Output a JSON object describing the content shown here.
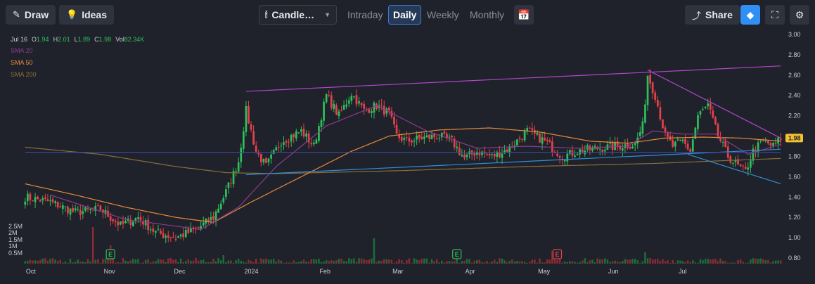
{
  "toolbar": {
    "draw_label": "Draw",
    "ideas_label": "Ideas",
    "chart_type_label": "Candle…",
    "tabs": [
      "Intraday",
      "Daily",
      "Weekly",
      "Monthly"
    ],
    "active_tab": "Daily",
    "share_label": "Share"
  },
  "icons": {
    "draw": "pencil-icon",
    "ideas": "lightbulb-icon",
    "chart_type": "candlestick-icon",
    "calendar": "calendar-icon",
    "share": "share-icon",
    "premium": "diamond-icon",
    "fullscreen": "fullscreen-icon",
    "settings": "gear-icon"
  },
  "ohlc": {
    "date": "Jul 16",
    "o_label": "O",
    "o": "1.94",
    "h_label": "H",
    "h": "2.01",
    "l_label": "L",
    "l": "1.89",
    "c_label": "C",
    "c": "1.98",
    "vol_label": "Vol",
    "vol": "82.34K"
  },
  "indicators": [
    {
      "label": "SMA 20",
      "color": "#8e3b8e"
    },
    {
      "label": "SMA 50",
      "color": "#e8893a"
    },
    {
      "label": "SMA 200",
      "color": "#8a6e3a"
    }
  ],
  "colors": {
    "up": "#2fbf5a",
    "down": "#e8404a",
    "trendline_upper": "#b046c8",
    "trendline_lower": "#2e8fd6",
    "horizontal_line": "#3a4aa8",
    "last_price_bg": "#f2c230"
  },
  "chart_data": {
    "type": "candlestick",
    "last_price": "1.98",
    "y_ticks": [
      "3.00",
      "2.80",
      "2.60",
      "2.40",
      "2.20",
      "2.00",
      "1.80",
      "1.60",
      "1.40",
      "1.20",
      "1.00",
      "0.80"
    ],
    "ylim": [
      0.8,
      3.0
    ],
    "volume_ticks": [
      "2.5M",
      "2M",
      "1.5M",
      "1M",
      "0.5M"
    ],
    "x_ticks": [
      "Oct",
      "Nov",
      "Dec",
      "2024",
      "Feb",
      "Mar",
      "Apr",
      "May",
      "Jun",
      "Jul"
    ],
    "close_anchors": [
      [
        0,
        1.4
      ],
      [
        10,
        1.35
      ],
      [
        20,
        1.25
      ],
      [
        30,
        1.28
      ],
      [
        38,
        1.12
      ],
      [
        45,
        1.2
      ],
      [
        52,
        1.05
      ],
      [
        60,
        1.0
      ],
      [
        68,
        1.08
      ],
      [
        75,
        1.2
      ],
      [
        80,
        1.45
      ],
      [
        85,
        1.75
      ],
      [
        88,
        2.25
      ],
      [
        92,
        1.85
      ],
      [
        96,
        1.7
      ],
      [
        102,
        1.95
      ],
      [
        110,
        2.05
      ],
      [
        115,
        1.9
      ],
      [
        120,
        2.4
      ],
      [
        125,
        2.2
      ],
      [
        130,
        2.42
      ],
      [
        135,
        2.25
      ],
      [
        140,
        2.3
      ],
      [
        145,
        2.22
      ],
      [
        148,
        2.0
      ],
      [
        152,
        1.95
      ],
      [
        158,
        1.98
      ],
      [
        165,
        2.0
      ],
      [
        170,
        1.95
      ],
      [
        175,
        1.78
      ],
      [
        180,
        1.85
      ],
      [
        186,
        1.8
      ],
      [
        193,
        1.88
      ],
      [
        200,
        2.05
      ],
      [
        207,
        1.95
      ],
      [
        214,
        1.8
      ],
      [
        220,
        1.85
      ],
      [
        228,
        1.88
      ],
      [
        236,
        1.9
      ],
      [
        243,
        1.92
      ],
      [
        246,
        2.1
      ],
      [
        248,
        2.6
      ],
      [
        251,
        2.4
      ],
      [
        255,
        2.0
      ],
      [
        258,
        1.9
      ],
      [
        262,
        1.95
      ],
      [
        265,
        1.85
      ],
      [
        268,
        2.2
      ],
      [
        272,
        2.3
      ],
      [
        276,
        2.0
      ],
      [
        280,
        1.8
      ],
      [
        284,
        1.7
      ],
      [
        287,
        1.65
      ],
      [
        290,
        1.85
      ],
      [
        294,
        1.95
      ],
      [
        298,
        1.9
      ],
      [
        301,
        1.98
      ]
    ],
    "sma20_anchors": [
      [
        10,
        1.42
      ],
      [
        40,
        1.18
      ],
      [
        70,
        1.08
      ],
      [
        85,
        1.3
      ],
      [
        100,
        1.7
      ],
      [
        120,
        2.1
      ],
      [
        140,
        2.3
      ],
      [
        160,
        2.05
      ],
      [
        180,
        1.88
      ],
      [
        200,
        1.9
      ],
      [
        220,
        1.88
      ],
      [
        240,
        1.9
      ],
      [
        250,
        2.05
      ],
      [
        262,
        2.02
      ],
      [
        275,
        2.02
      ],
      [
        288,
        1.82
      ],
      [
        301,
        1.92
      ]
    ],
    "sma50_anchors": [
      [
        0,
        1.53
      ],
      [
        20,
        1.42
      ],
      [
        40,
        1.3
      ],
      [
        60,
        1.2
      ],
      [
        75,
        1.15
      ],
      [
        90,
        1.35
      ],
      [
        110,
        1.6
      ],
      [
        130,
        1.85
      ],
      [
        145,
        2.0
      ],
      [
        165,
        2.06
      ],
      [
        185,
        2.08
      ],
      [
        205,
        2.04
      ],
      [
        225,
        1.95
      ],
      [
        240,
        1.93
      ],
      [
        255,
        1.98
      ],
      [
        270,
        1.99
      ],
      [
        285,
        1.98
      ],
      [
        301,
        1.95
      ]
    ],
    "sma200_anchors": [
      [
        0,
        1.89
      ],
      [
        30,
        1.82
      ],
      [
        60,
        1.7
      ],
      [
        80,
        1.64
      ],
      [
        100,
        1.63
      ],
      [
        150,
        1.66
      ],
      [
        200,
        1.7
      ],
      [
        250,
        1.73
      ],
      [
        301,
        1.78
      ]
    ],
    "trendlines": [
      {
        "name": "upper-resistance",
        "from": [
          88,
          2.44
        ],
        "to": [
          301,
          2.69
        ]
      },
      {
        "name": "descending-resistance",
        "from": [
          248,
          2.65
        ],
        "to": [
          301,
          1.98
        ]
      },
      {
        "name": "ascending-support",
        "from": [
          88,
          1.62
        ],
        "to": [
          301,
          1.87
        ]
      },
      {
        "name": "descending-support",
        "from": [
          264,
          1.82
        ],
        "to": [
          301,
          1.53
        ]
      },
      {
        "name": "horizontal-support",
        "from": [
          0,
          1.84
        ],
        "to": [
          301,
          1.84
        ]
      }
    ],
    "events": [
      {
        "label": "E",
        "index": 34,
        "color": "#2fbf5a"
      },
      {
        "label": "E",
        "index": 172,
        "color": "#2fbf5a"
      },
      {
        "label": "E",
        "index": 212,
        "color": "#e8404a"
      }
    ],
    "volume_spikes": [
      [
        27,
        2.6
      ],
      [
        34,
        1.3
      ],
      [
        79,
        0.6
      ],
      [
        139,
        1.8
      ],
      [
        172,
        0.6
      ],
      [
        210,
        0.9
      ],
      [
        247,
        0.8
      ],
      [
        249,
        0.4
      ]
    ]
  }
}
